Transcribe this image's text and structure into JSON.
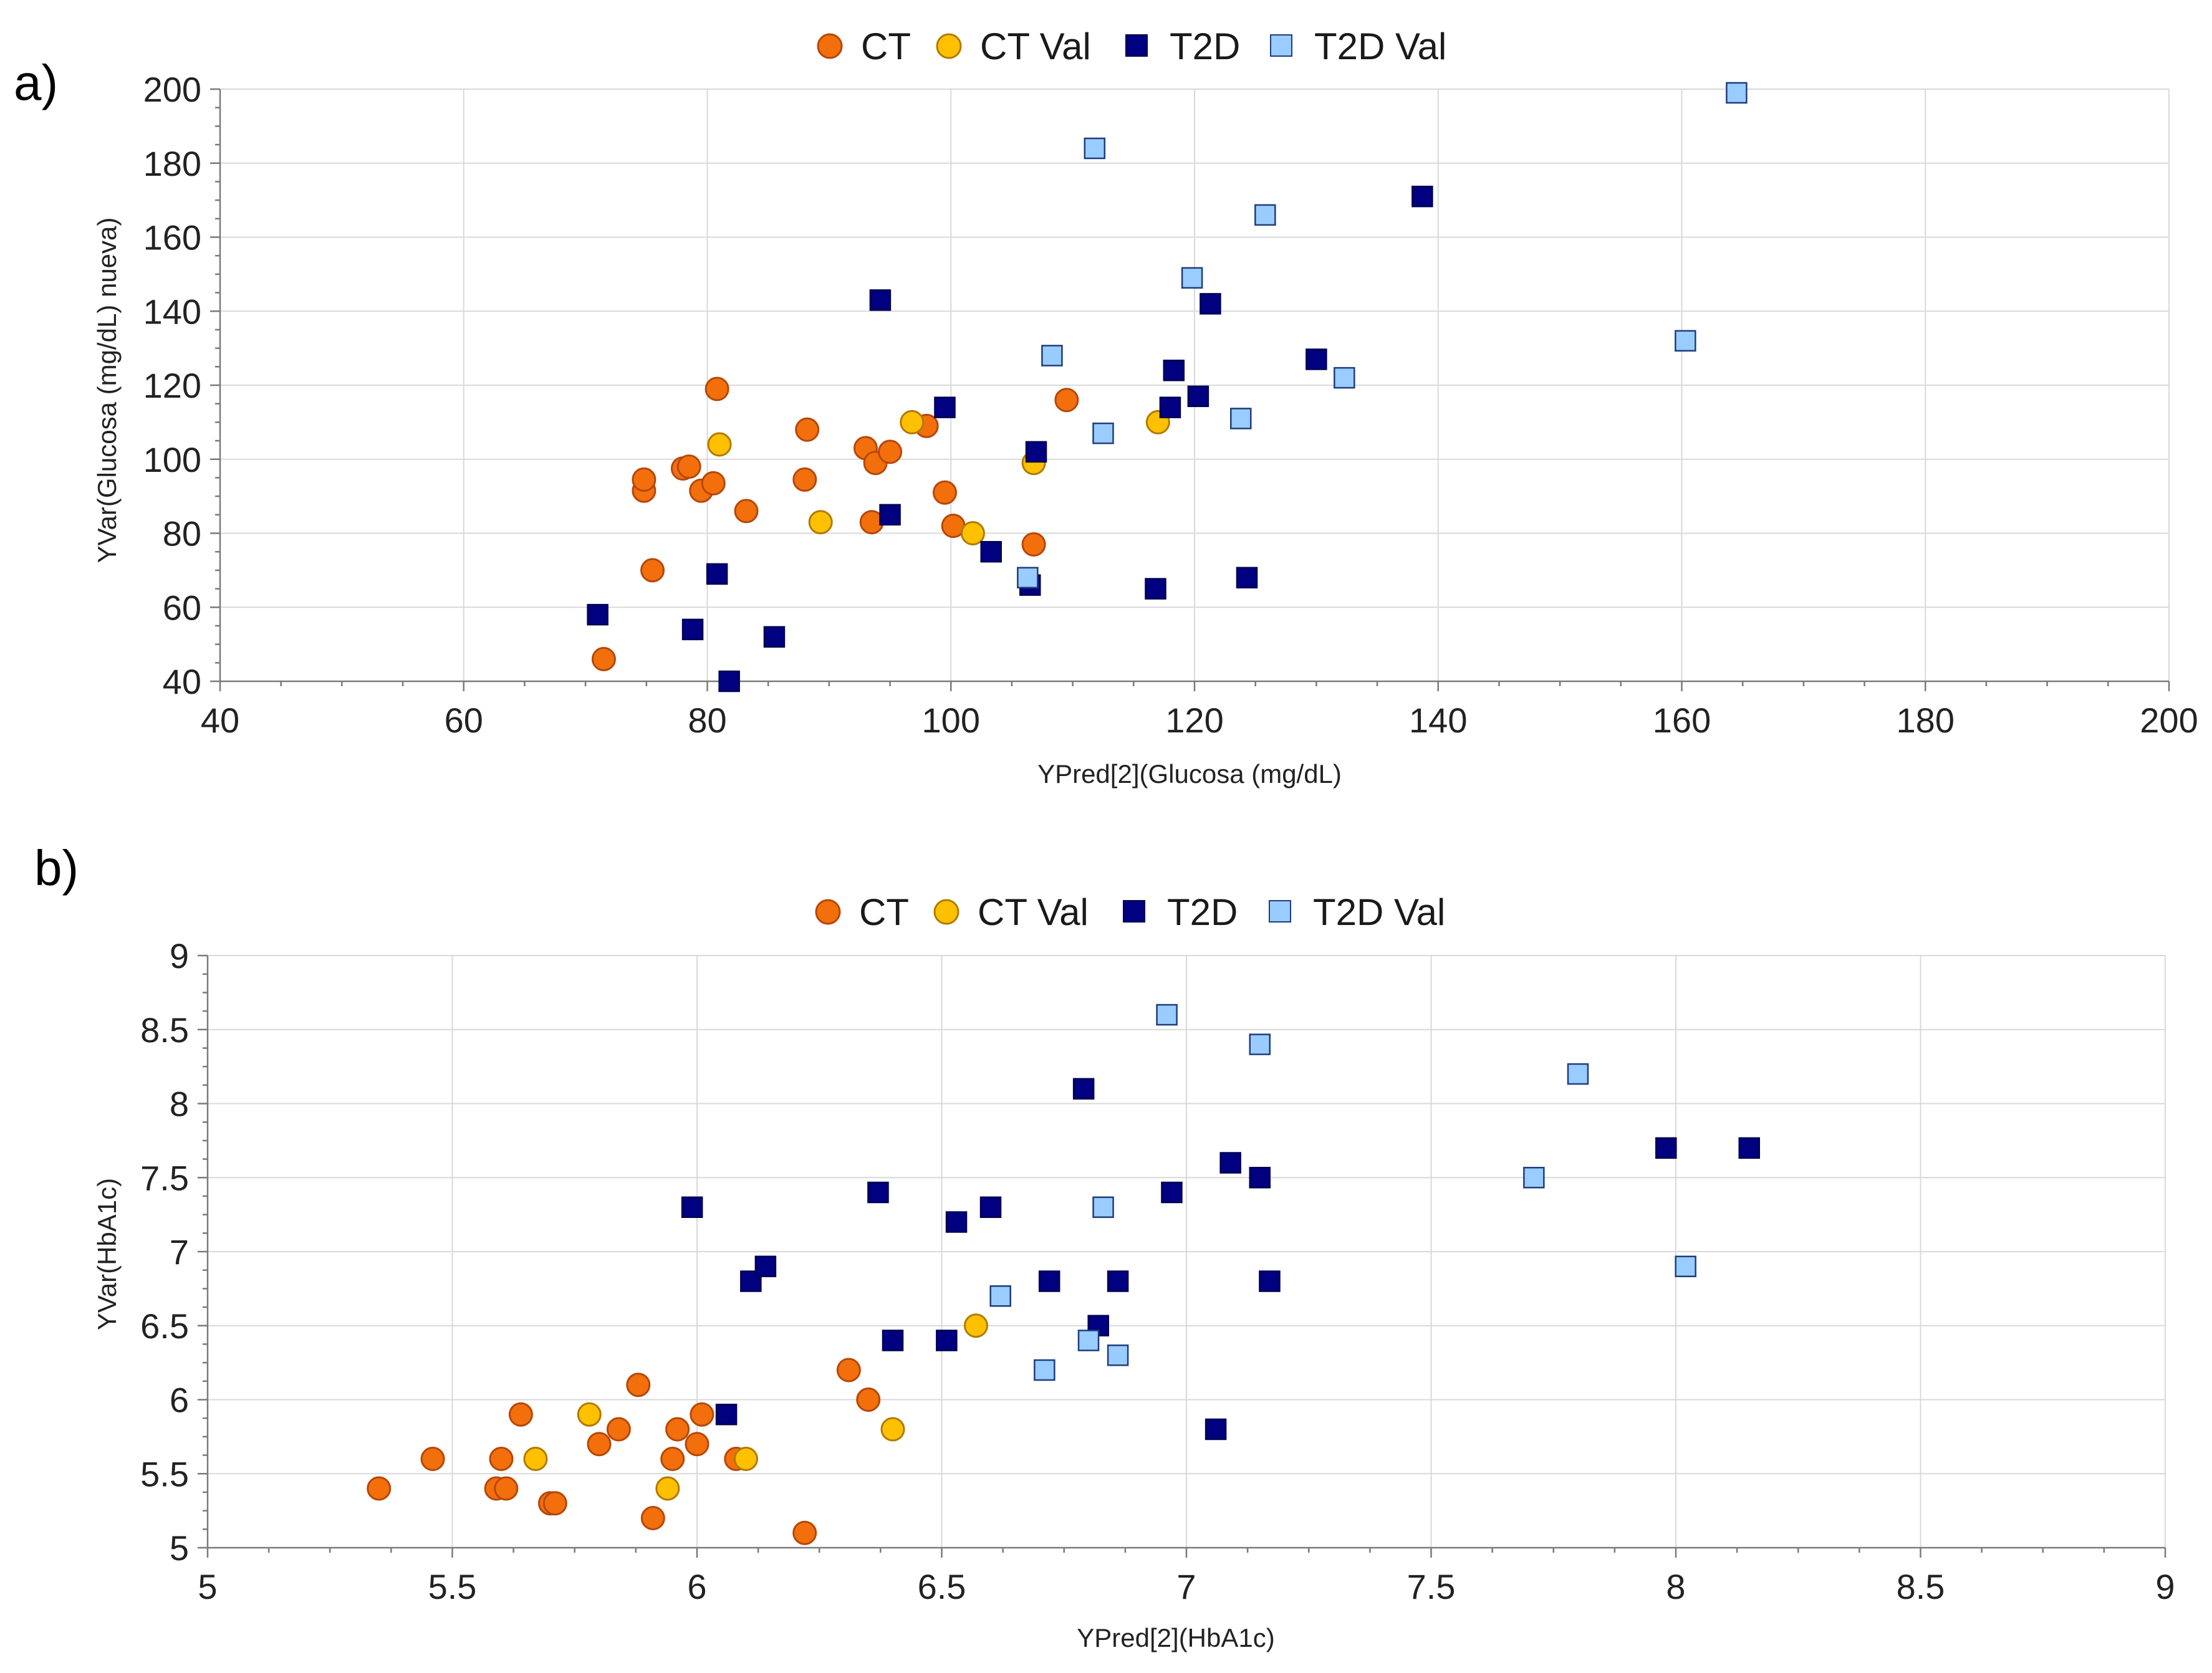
{
  "panels": [
    {
      "label": "a)"
    },
    {
      "label": "b)"
    }
  ],
  "legend": {
    "items": [
      {
        "name": "CT",
        "shape": "circle",
        "fill": "#F36F0C",
        "stroke": "#B5470A"
      },
      {
        "name": "CT Val",
        "shape": "circle",
        "fill": "#FFC000",
        "stroke": "#B07A00"
      },
      {
        "name": "T2D",
        "shape": "square",
        "fill": "#000080",
        "stroke": "#000050"
      },
      {
        "name": "T2D Val",
        "shape": "square",
        "fill": "#99CCFF",
        "stroke": "#1F3C7A"
      }
    ]
  },
  "chart_data": [
    {
      "type": "scatter",
      "title": "",
      "xlabel": "YPred[2](Glucosa (mg/dL)",
      "ylabel": "YVar(Glucosa (mg/dL) nueva)",
      "xlim": [
        40,
        200
      ],
      "ylim": [
        40,
        200
      ],
      "xticks": [
        "40",
        "60",
        "80",
        "100",
        "120",
        "140",
        "160",
        "180",
        "200"
      ],
      "yticks": [
        "40",
        "60",
        "80",
        "100",
        "120",
        "140",
        "160",
        "180",
        "200"
      ],
      "grid": true,
      "legend_position": "top-center",
      "series": [
        {
          "name": "CT",
          "points": [
            [
              71.5,
              46
            ],
            [
              74.8,
              91.5
            ],
            [
              74.8,
              94.5
            ],
            [
              75.5,
              70
            ],
            [
              78,
              97.5
            ],
            [
              78.5,
              98
            ],
            [
              79.5,
              91.5
            ],
            [
              80.5,
              93.5
            ],
            [
              80.8,
              119
            ],
            [
              83.2,
              86
            ],
            [
              88,
              94.5
            ],
            [
              88.2,
              108
            ],
            [
              93,
              103
            ],
            [
              93.5,
              83
            ],
            [
              93.8,
              99
            ],
            [
              95,
              102
            ],
            [
              98,
              109
            ],
            [
              99.5,
              91
            ],
            [
              100.2,
              82
            ],
            [
              106.8,
              77
            ],
            [
              109.5,
              116
            ]
          ]
        },
        {
          "name": "CT Val",
          "points": [
            [
              81,
              104
            ],
            [
              89.3,
              83
            ],
            [
              96.8,
              110
            ],
            [
              101.8,
              80
            ],
            [
              106.8,
              99
            ],
            [
              117,
              110
            ]
          ]
        },
        {
          "name": "T2D",
          "points": [
            [
              71,
              58
            ],
            [
              78.8,
              54
            ],
            [
              80.8,
              69
            ],
            [
              81.8,
              40
            ],
            [
              85.5,
              52
            ],
            [
              94.2,
              143
            ],
            [
              95,
              85
            ],
            [
              99.5,
              114
            ],
            [
              103.3,
              75
            ],
            [
              106.5,
              66
            ],
            [
              107,
              102
            ],
            [
              116.8,
              65
            ],
            [
              118,
              114
            ],
            [
              118.3,
              124
            ],
            [
              120.3,
              117
            ],
            [
              121.3,
              142
            ],
            [
              124.3,
              68
            ],
            [
              130,
              127
            ],
            [
              138.7,
              171
            ]
          ]
        },
        {
          "name": "T2D Val",
          "points": [
            [
              106.3,
              68
            ],
            [
              108.3,
              128
            ],
            [
              111.8,
              184
            ],
            [
              112.5,
              107
            ],
            [
              119.8,
              149
            ],
            [
              123.8,
              111
            ],
            [
              125.8,
              166
            ],
            [
              132.3,
              122
            ],
            [
              160.3,
              132
            ],
            [
              164.5,
              199
            ]
          ]
        }
      ]
    },
    {
      "type": "scatter",
      "title": "",
      "xlabel": "YPred[2](HbA1c)",
      "ylabel": "YVar(HbA1c)",
      "xlim": [
        5,
        9
      ],
      "ylim": [
        5,
        9
      ],
      "xticks": [
        "5",
        "5.5",
        "6",
        "6.5",
        "7",
        "7.5",
        "8",
        "8.5",
        "9"
      ],
      "yticks": [
        "5",
        "5.5",
        "6",
        "6.5",
        "7",
        "7.5",
        "8",
        "8.5",
        "9"
      ],
      "grid": true,
      "legend_position": "top-center",
      "series": [
        {
          "name": "CT",
          "points": [
            [
              5.35,
              5.4
            ],
            [
              5.46,
              5.6
            ],
            [
              5.59,
              5.4
            ],
            [
              5.6,
              5.6
            ],
            [
              5.61,
              5.4
            ],
            [
              5.64,
              5.9
            ],
            [
              5.7,
              5.3
            ],
            [
              5.71,
              5.3
            ],
            [
              5.8,
              5.7
            ],
            [
              5.84,
              5.8
            ],
            [
              5.88,
              6.1
            ],
            [
              5.91,
              5.2
            ],
            [
              5.95,
              5.6
            ],
            [
              5.96,
              5.8
            ],
            [
              6.0,
              5.7
            ],
            [
              6.01,
              5.9
            ],
            [
              6.08,
              5.6
            ],
            [
              6.22,
              5.1
            ],
            [
              6.31,
              6.2
            ],
            [
              6.35,
              6.0
            ]
          ]
        },
        {
          "name": "CT Val",
          "points": [
            [
              5.67,
              5.6
            ],
            [
              5.78,
              5.9
            ],
            [
              5.94,
              5.4
            ],
            [
              6.1,
              5.6
            ],
            [
              6.4,
              5.8
            ],
            [
              6.57,
              6.5
            ]
          ]
        },
        {
          "name": "T2D",
          "points": [
            [
              5.99,
              7.3
            ],
            [
              6.06,
              5.9
            ],
            [
              6.11,
              6.8
            ],
            [
              6.14,
              6.9
            ],
            [
              6.37,
              7.4
            ],
            [
              6.4,
              6.4
            ],
            [
              6.51,
              6.4
            ],
            [
              6.53,
              7.2
            ],
            [
              6.6,
              7.3
            ],
            [
              6.72,
              6.8
            ],
            [
              6.79,
              8.1
            ],
            [
              6.82,
              6.5
            ],
            [
              6.86,
              6.8
            ],
            [
              6.97,
              7.4
            ],
            [
              7.06,
              5.8
            ],
            [
              7.09,
              7.6
            ],
            [
              7.15,
              7.5
            ],
            [
              7.17,
              6.8
            ],
            [
              7.98,
              7.7
            ],
            [
              8.15,
              7.7
            ]
          ]
        },
        {
          "name": "T2D Val",
          "points": [
            [
              6.62,
              6.7
            ],
            [
              6.71,
              6.2
            ],
            [
              6.8,
              6.4
            ],
            [
              6.83,
              7.3
            ],
            [
              6.86,
              6.3
            ],
            [
              6.96,
              8.6
            ],
            [
              7.15,
              8.4
            ],
            [
              7.71,
              7.5
            ],
            [
              7.8,
              8.2
            ],
            [
              8.02,
              6.9
            ]
          ]
        }
      ]
    }
  ]
}
